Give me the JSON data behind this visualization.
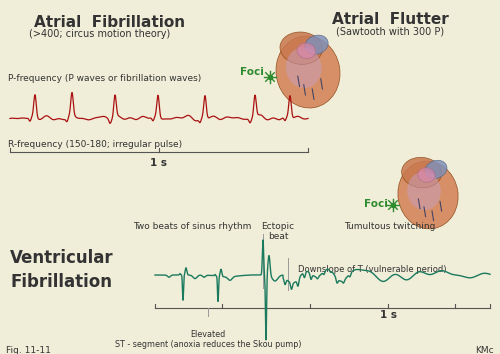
{
  "bg_color": "#f0edd8",
  "title_af": "Atrial  Fibrillation",
  "subtitle_af": "(>400; circus motion theory)",
  "title_flutter": "Atrial  Flutter",
  "subtitle_flutter": "(Sawtooth with 300 P)",
  "title_vf": "Ventricular\nFibrillation",
  "label_p_freq": "P-frequency (P waves or fibrillation waves)",
  "label_r_freq": "R-frequency (150-180; irregular pulse)",
  "label_1s_top": "1 s",
  "label_1s_bot": "1 s",
  "label_two_beats": "Two beats of sinus rhythm",
  "label_ectopic": "Ectopic\nbeat",
  "label_tumultous": "Tumultous twitching",
  "label_downslope": "Downslope of T (vulnerable period)",
  "label_elevated": "Elevated\nST - segment (anoxia reduces the Skou pump)",
  "label_foci_top": "Foci",
  "label_foci_bot": "Foci",
  "fig_label": "Fig. 11-11",
  "kmc_label": "KMc",
  "ecg_color": "#aa1111",
  "vf_color": "#1a7a5e",
  "axis_color": "#555555",
  "text_color": "#333333",
  "foci_color": "#2e8b2e",
  "ann_color": "#999999"
}
